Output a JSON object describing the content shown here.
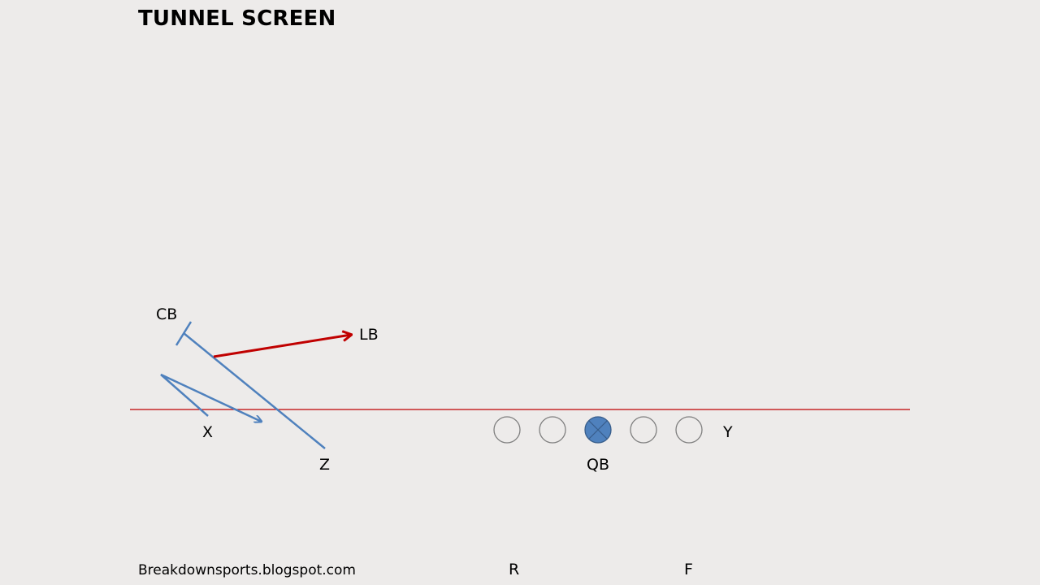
{
  "title": "TUNNEL SCREEN",
  "footer": "Breakdownsports.blogspot.com",
  "labels": {
    "cb": "CB",
    "lb": "LB",
    "x": "X",
    "z": "Z",
    "qb": "QB",
    "y": "Y",
    "r": "R",
    "f": "F"
  },
  "colors": {
    "background": "#edebea",
    "route": "#4f81bd",
    "defender_path": "#c00000",
    "line_of_scrimmage": "#c00000",
    "qb_fill": "#4f81bd",
    "lineman_stroke": "#7f7f7f"
  }
}
